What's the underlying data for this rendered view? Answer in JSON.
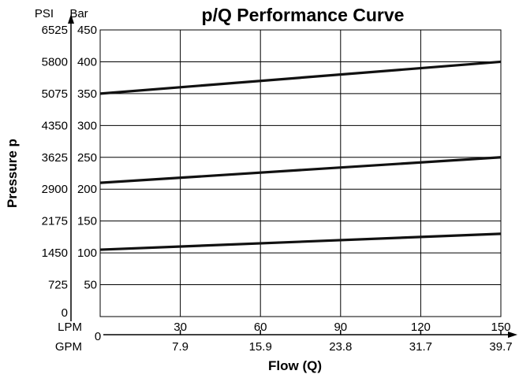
{
  "chart_data": {
    "type": "line",
    "title": "p/Q Performance Curve",
    "ylabel": "Pressure p",
    "xlabel": "Flow (Q)",
    "y_units": {
      "psi": "PSI",
      "bar": "Bar"
    },
    "x_units": {
      "lpm": "LPM",
      "gpm": "GPM"
    },
    "ylim": [
      0,
      450
    ],
    "xlim": [
      0,
      150
    ],
    "grid": true,
    "y_ticks_bar": [
      "450",
      "400",
      "350",
      "300",
      "250",
      "200",
      "150",
      "100",
      "50"
    ],
    "y_ticks_psi": [
      "6525",
      "5800",
      "5075",
      "4350",
      "3625",
      "2900",
      "2175",
      "1450",
      "725",
      "0"
    ],
    "y_tick_values_bar": [
      450,
      400,
      350,
      300,
      250,
      200,
      150,
      100,
      50
    ],
    "y_tick_values_psi": [
      450,
      400,
      350,
      300,
      250,
      200,
      150,
      100,
      50,
      0
    ],
    "x_origin_label": "0",
    "x_ticks_lpm": [
      "30",
      "60",
      "90",
      "120",
      "150"
    ],
    "x_tick_values": [
      30,
      60,
      90,
      120,
      150
    ],
    "x_ticks_gpm": [
      "7.9",
      "15.9",
      "23.8",
      "31.7",
      "39.7"
    ],
    "series": [
      {
        "x": [
          0,
          150
        ],
        "y": [
          350,
          400
        ]
      },
      {
        "x": [
          0,
          150
        ],
        "y": [
          210,
          250
        ]
      },
      {
        "x": [
          0,
          150
        ],
        "y": [
          105,
          130
        ]
      }
    ]
  }
}
